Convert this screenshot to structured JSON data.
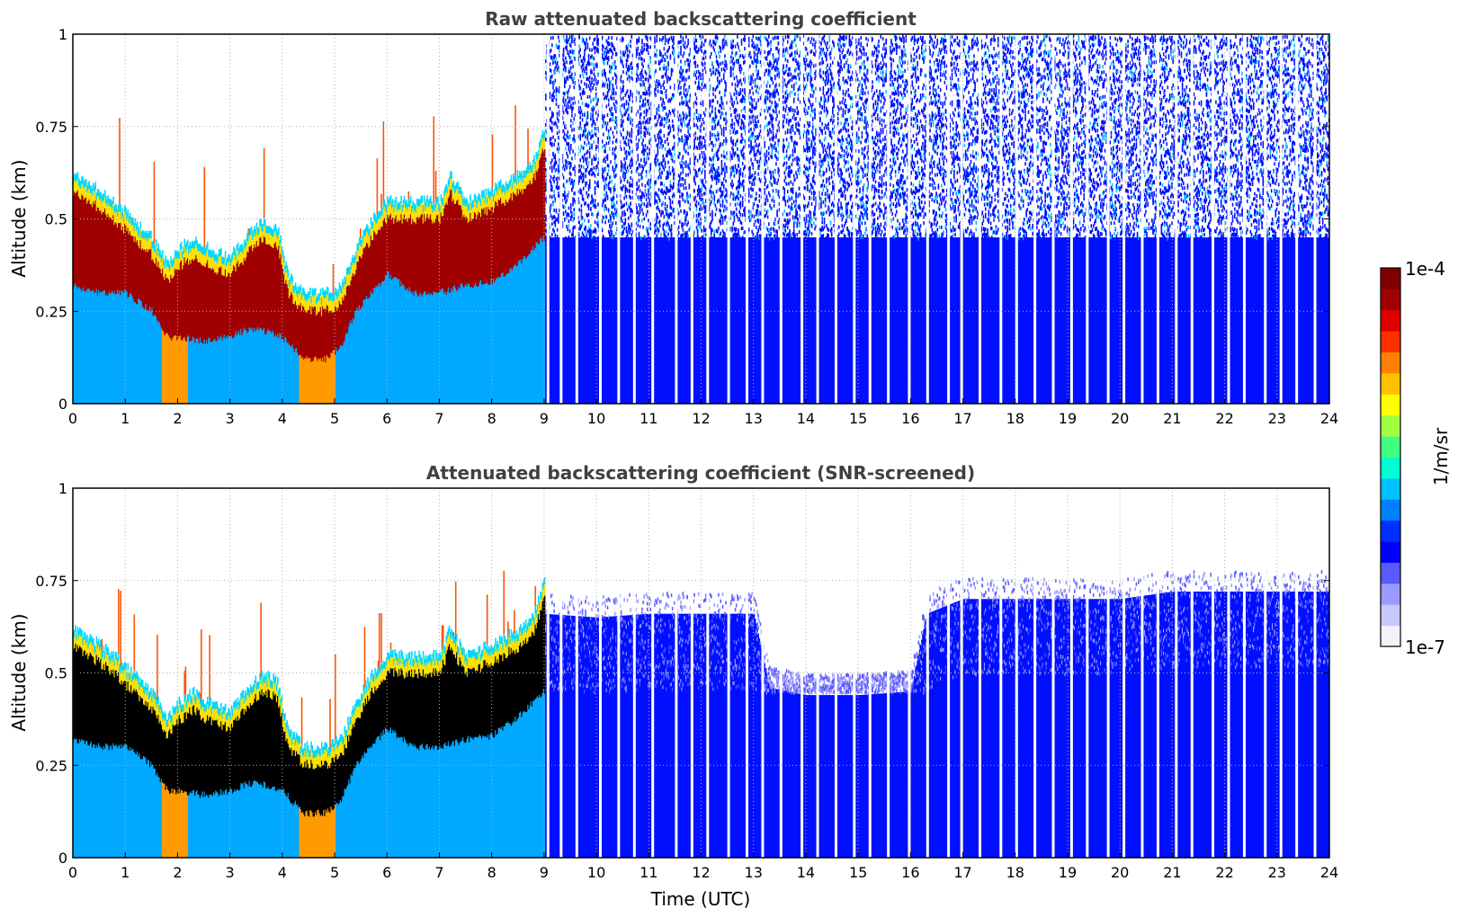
{
  "chart_data": [
    {
      "type": "heatmap",
      "title": "Raw attenuated backscattering coefficient",
      "xlabel": "",
      "ylabel": "Altitude (km)",
      "xlim": [
        0,
        24
      ],
      "ylim": [
        0,
        1
      ],
      "xticks": [
        "0",
        "1",
        "2",
        "3",
        "4",
        "5",
        "6",
        "7",
        "8",
        "9",
        "10",
        "11",
        "12",
        "13",
        "14",
        "15",
        "16",
        "17",
        "18",
        "19",
        "20",
        "21",
        "22",
        "23",
        "24"
      ],
      "yticks": [
        "0",
        "0.25",
        "0.5",
        "0.75",
        "1"
      ],
      "grid": true,
      "screened": false,
      "layer_top_km": [
        [
          0.0,
          0.62
        ],
        [
          0.5,
          0.58
        ],
        [
          1.0,
          0.52
        ],
        [
          1.5,
          0.45
        ],
        [
          1.8,
          0.38
        ],
        [
          2.0,
          0.42
        ],
        [
          2.3,
          0.45
        ],
        [
          2.6,
          0.42
        ],
        [
          3.0,
          0.4
        ],
        [
          3.3,
          0.45
        ],
        [
          3.6,
          0.5
        ],
        [
          3.9,
          0.48
        ],
        [
          4.1,
          0.35
        ],
        [
          4.4,
          0.3
        ],
        [
          4.8,
          0.3
        ],
        [
          5.1,
          0.32
        ],
        [
          5.4,
          0.42
        ],
        [
          5.7,
          0.5
        ],
        [
          6.0,
          0.55
        ],
        [
          6.5,
          0.55
        ],
        [
          7.0,
          0.55
        ],
        [
          7.2,
          0.62
        ],
        [
          7.5,
          0.55
        ],
        [
          8.0,
          0.58
        ],
        [
          8.5,
          0.62
        ],
        [
          8.8,
          0.66
        ],
        [
          9.0,
          0.75
        ]
      ],
      "layer_base_km": [
        [
          0.0,
          0.32
        ],
        [
          0.5,
          0.3
        ],
        [
          1.0,
          0.3
        ],
        [
          1.5,
          0.25
        ],
        [
          1.8,
          0.18
        ],
        [
          2.0,
          0.18
        ],
        [
          2.5,
          0.17
        ],
        [
          3.0,
          0.18
        ],
        [
          3.3,
          0.2
        ],
        [
          3.6,
          0.2
        ],
        [
          4.0,
          0.18
        ],
        [
          4.4,
          0.12
        ],
        [
          4.8,
          0.12
        ],
        [
          5.1,
          0.15
        ],
        [
          5.4,
          0.25
        ],
        [
          5.7,
          0.3
        ],
        [
          6.0,
          0.35
        ],
        [
          6.5,
          0.3
        ],
        [
          7.0,
          0.3
        ],
        [
          7.5,
          0.32
        ],
        [
          8.0,
          0.33
        ],
        [
          8.5,
          0.38
        ],
        [
          9.0,
          0.45
        ]
      ],
      "noise_floor_description": "",
      "signal_top_km": [
        [
          9.0,
          1.0
        ],
        [
          24.0,
          1.0
        ]
      ]
    },
    {
      "type": "heatmap",
      "title": "Attenuated backscattering coefficient (SNR-screened)",
      "xlabel": "Time (UTC)",
      "ylabel": "Altitude (km)",
      "xlim": [
        0,
        24
      ],
      "ylim": [
        0,
        1
      ],
      "xticks": [
        "0",
        "1",
        "2",
        "3",
        "4",
        "5",
        "6",
        "7",
        "8",
        "9",
        "10",
        "11",
        "12",
        "13",
        "14",
        "15",
        "16",
        "17",
        "18",
        "19",
        "20",
        "21",
        "22",
        "23",
        "24"
      ],
      "yticks": [
        "0",
        "0.25",
        "0.5",
        "0.75",
        "1"
      ],
      "grid": true,
      "screened": true,
      "layer_top_km": [
        [
          0.0,
          0.62
        ],
        [
          0.5,
          0.58
        ],
        [
          1.0,
          0.52
        ],
        [
          1.5,
          0.45
        ],
        [
          1.8,
          0.38
        ],
        [
          2.0,
          0.42
        ],
        [
          2.3,
          0.45
        ],
        [
          2.6,
          0.42
        ],
        [
          3.0,
          0.4
        ],
        [
          3.3,
          0.45
        ],
        [
          3.6,
          0.5
        ],
        [
          3.9,
          0.48
        ],
        [
          4.1,
          0.35
        ],
        [
          4.4,
          0.3
        ],
        [
          4.8,
          0.3
        ],
        [
          5.1,
          0.32
        ],
        [
          5.4,
          0.42
        ],
        [
          5.7,
          0.5
        ],
        [
          6.0,
          0.55
        ],
        [
          6.5,
          0.55
        ],
        [
          7.0,
          0.55
        ],
        [
          7.2,
          0.62
        ],
        [
          7.5,
          0.55
        ],
        [
          8.0,
          0.58
        ],
        [
          8.5,
          0.62
        ],
        [
          8.8,
          0.66
        ],
        [
          9.0,
          0.75
        ]
      ],
      "layer_base_km": [
        [
          0.0,
          0.32
        ],
        [
          0.5,
          0.3
        ],
        [
          1.0,
          0.3
        ],
        [
          1.5,
          0.25
        ],
        [
          1.8,
          0.18
        ],
        [
          2.0,
          0.18
        ],
        [
          2.5,
          0.17
        ],
        [
          3.0,
          0.18
        ],
        [
          3.3,
          0.2
        ],
        [
          3.6,
          0.2
        ],
        [
          4.0,
          0.18
        ],
        [
          4.4,
          0.12
        ],
        [
          4.8,
          0.12
        ],
        [
          5.1,
          0.15
        ],
        [
          5.4,
          0.25
        ],
        [
          5.7,
          0.3
        ],
        [
          6.0,
          0.35
        ],
        [
          6.5,
          0.3
        ],
        [
          7.0,
          0.3
        ],
        [
          7.5,
          0.32
        ],
        [
          8.0,
          0.33
        ],
        [
          8.5,
          0.38
        ],
        [
          9.0,
          0.45
        ]
      ],
      "signal_top_km": [
        [
          9.0,
          0.66
        ],
        [
          10.0,
          0.65
        ],
        [
          11.0,
          0.66
        ],
        [
          12.0,
          0.66
        ],
        [
          13.0,
          0.66
        ],
        [
          13.3,
          0.46
        ],
        [
          14.0,
          0.44
        ],
        [
          15.0,
          0.44
        ],
        [
          16.0,
          0.45
        ],
        [
          16.3,
          0.66
        ],
        [
          17.0,
          0.7
        ],
        [
          18.0,
          0.7
        ],
        [
          19.0,
          0.7
        ],
        [
          20.0,
          0.7
        ],
        [
          21.0,
          0.72
        ],
        [
          22.0,
          0.72
        ],
        [
          23.0,
          0.72
        ],
        [
          23.8,
          0.72
        ]
      ]
    }
  ],
  "colorbar": {
    "label": "1/m/sr",
    "max_label": "1e-4",
    "min_label": "1e-7",
    "colors": [
      "#f2f2ff",
      "#c8c8ff",
      "#9a9aff",
      "#5a5aff",
      "#0000ff",
      "#0030ff",
      "#0080ff",
      "#00c0ff",
      "#00ffd0",
      "#40ff80",
      "#a0ff40",
      "#ffff00",
      "#ffc000",
      "#ff8000",
      "#ff3000",
      "#e00000",
      "#a00000",
      "#800000"
    ]
  },
  "data_gaps_hours": [
    9.05,
    9.3,
    9.6,
    10.05,
    10.4,
    10.7,
    11.05,
    11.5,
    11.8,
    12.1,
    12.5,
    12.85,
    13.15,
    13.5,
    13.9,
    14.2,
    14.55,
    14.9,
    15.2,
    15.55,
    15.95,
    16.3,
    16.7,
    16.95,
    17.3,
    17.7,
    18.0,
    18.35,
    18.7,
    19.05,
    19.35,
    19.75,
    20.05,
    20.4,
    20.7,
    21.05,
    21.35,
    21.75,
    22.05,
    22.35,
    22.75,
    23.05,
    23.35,
    23.7
  ]
}
